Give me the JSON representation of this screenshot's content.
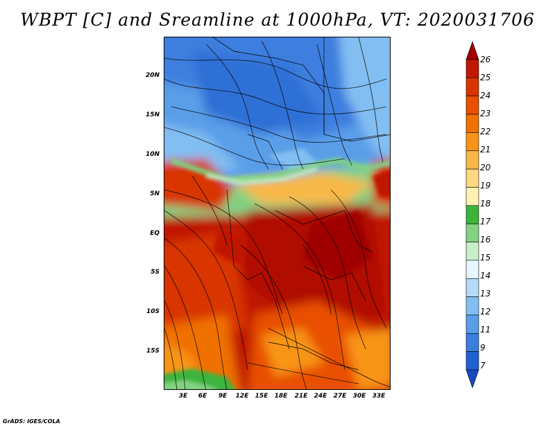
{
  "title": "WBPT [C] and Sreamline at 1000hPa, VT: 2020031706",
  "credit": "GrADS: IGES/COLA",
  "map": {
    "lat_labels": [
      "20N",
      "15N",
      "10N",
      "5N",
      "EQ",
      "5S",
      "10S",
      "15S"
    ],
    "lon_labels": [
      "3E",
      "6E",
      "9E",
      "12E",
      "15E",
      "18E",
      "21E",
      "24E",
      "27E",
      "30E",
      "33E"
    ]
  },
  "colorbar": {
    "labels": [
      "26",
      "25",
      "24",
      "23",
      "22",
      "21",
      "20",
      "19",
      "18",
      "17",
      "16",
      "15",
      "14",
      "13",
      "12",
      "11",
      "9",
      "7"
    ],
    "colors": [
      "#a00000",
      "#c01800",
      "#d83400",
      "#e85000",
      "#f07000",
      "#f89418",
      "#f8b848",
      "#fcd880",
      "#fff0b4",
      "#3cb43c",
      "#82d282",
      "#c8f0c8",
      "#e6f6ff",
      "#b4dcf8",
      "#82bef2",
      "#5a9ee8",
      "#3c7ede",
      "#2060d0",
      "#1848c0"
    ]
  }
}
